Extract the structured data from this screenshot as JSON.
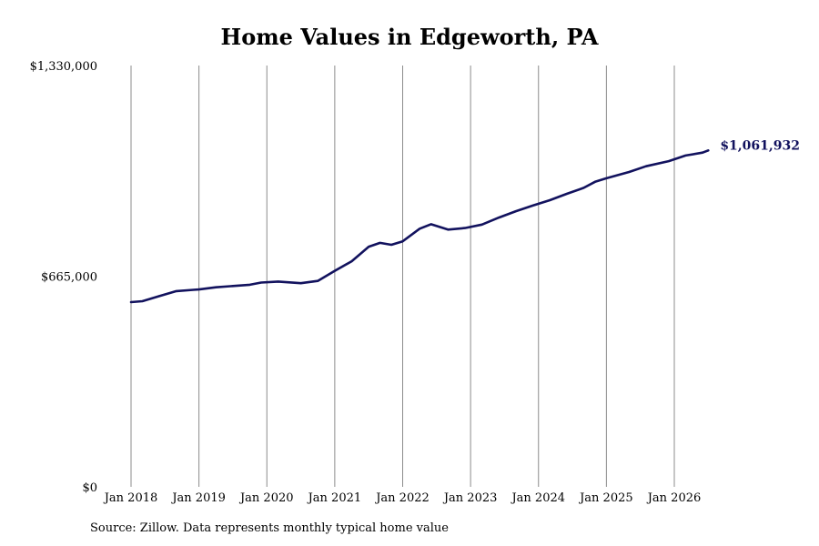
{
  "chart_data": {
    "type": "line",
    "title": "Home Values in Edgeworth, PA",
    "source": "Source: Zillow. Data represents monthly typical home value",
    "ylim": [
      0,
      1330000
    ],
    "y_ticks": [
      {
        "value": 0,
        "label": "$0"
      },
      {
        "value": 665000,
        "label": "$665,000"
      },
      {
        "value": 1330000,
        "label": "$1,330,000"
      }
    ],
    "x_ticks": [
      {
        "value": "2018-01",
        "label": "Jan 2018"
      },
      {
        "value": "2019-01",
        "label": "Jan 2019"
      },
      {
        "value": "2020-01",
        "label": "Jan 2020"
      },
      {
        "value": "2021-01",
        "label": "Jan 2021"
      },
      {
        "value": "2022-01",
        "label": "Jan 2022"
      },
      {
        "value": "2023-01",
        "label": "Jan 2023"
      },
      {
        "value": "2024-01",
        "label": "Jan 2024"
      },
      {
        "value": "2025-01",
        "label": "Jan 2025"
      },
      {
        "value": "2026-01",
        "label": "Jan 2026"
      }
    ],
    "grid": "vertical",
    "series": [
      {
        "color": "#12125e",
        "end_label": "$1,061,932",
        "points": [
          [
            "2018-01",
            583000
          ],
          [
            "2018-03",
            586000
          ],
          [
            "2018-06",
            602000
          ],
          [
            "2018-09",
            618000
          ],
          [
            "2018-12",
            622000
          ],
          [
            "2019-01",
            623000
          ],
          [
            "2019-04",
            630000
          ],
          [
            "2019-07",
            634000
          ],
          [
            "2019-10",
            638000
          ],
          [
            "2019-12",
            645000
          ],
          [
            "2020-03",
            648000
          ],
          [
            "2020-07",
            643000
          ],
          [
            "2020-10",
            650000
          ],
          [
            "2021-01",
            682000
          ],
          [
            "2021-04",
            712000
          ],
          [
            "2021-07",
            758000
          ],
          [
            "2021-09",
            770000
          ],
          [
            "2021-11",
            764000
          ],
          [
            "2022-01",
            775000
          ],
          [
            "2022-04",
            815000
          ],
          [
            "2022-06",
            829000
          ],
          [
            "2022-09",
            812000
          ],
          [
            "2022-12",
            817000
          ],
          [
            "2023-03",
            828000
          ],
          [
            "2023-06",
            850000
          ],
          [
            "2023-09",
            870000
          ],
          [
            "2023-12",
            888000
          ],
          [
            "2024-03",
            905000
          ],
          [
            "2024-06",
            925000
          ],
          [
            "2024-09",
            944000
          ],
          [
            "2024-11",
            963000
          ],
          [
            "2025-01",
            974000
          ],
          [
            "2025-05",
            994000
          ],
          [
            "2025-08",
            1012000
          ],
          [
            "2025-12",
            1028000
          ],
          [
            "2026-03",
            1046000
          ],
          [
            "2026-06",
            1055000
          ],
          [
            "2026-07",
            1061932
          ]
        ]
      }
    ]
  }
}
